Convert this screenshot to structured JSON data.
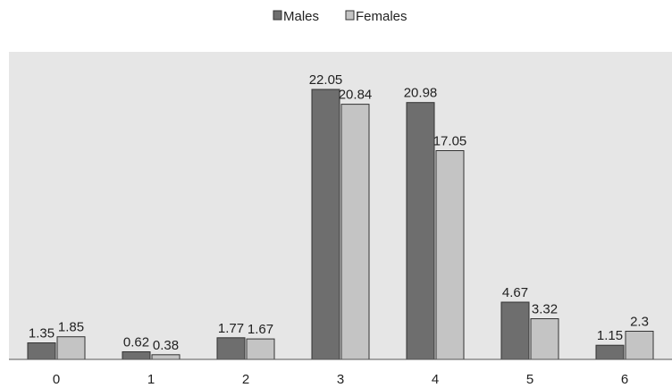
{
  "chart_data": {
    "type": "bar",
    "title": "",
    "xlabel": "",
    "ylabel": "",
    "categories": [
      "0",
      "1",
      "2",
      "3",
      "4",
      "5",
      "6"
    ],
    "series": [
      {
        "name": "Males",
        "values": [
          1.35,
          0.62,
          1.77,
          22.05,
          20.98,
          4.67,
          1.15
        ],
        "labels": [
          "1.35",
          "0.62",
          "1.77",
          "22.05",
          "20.98",
          "4.67",
          "1.15"
        ],
        "color": "#6e6e6e"
      },
      {
        "name": "Females",
        "values": [
          1.85,
          0.38,
          1.67,
          20.84,
          17.05,
          3.32,
          2.3
        ],
        "labels": [
          "1.85",
          "0.38",
          "1.67",
          "20.84",
          "17.05",
          "3.32",
          "2.3"
        ],
        "color": "#c4c4c4"
      }
    ],
    "ylim": [
      0,
      25
    ],
    "grid": false,
    "legend_position": "top-center",
    "plot_background": "#e6e6e6"
  }
}
